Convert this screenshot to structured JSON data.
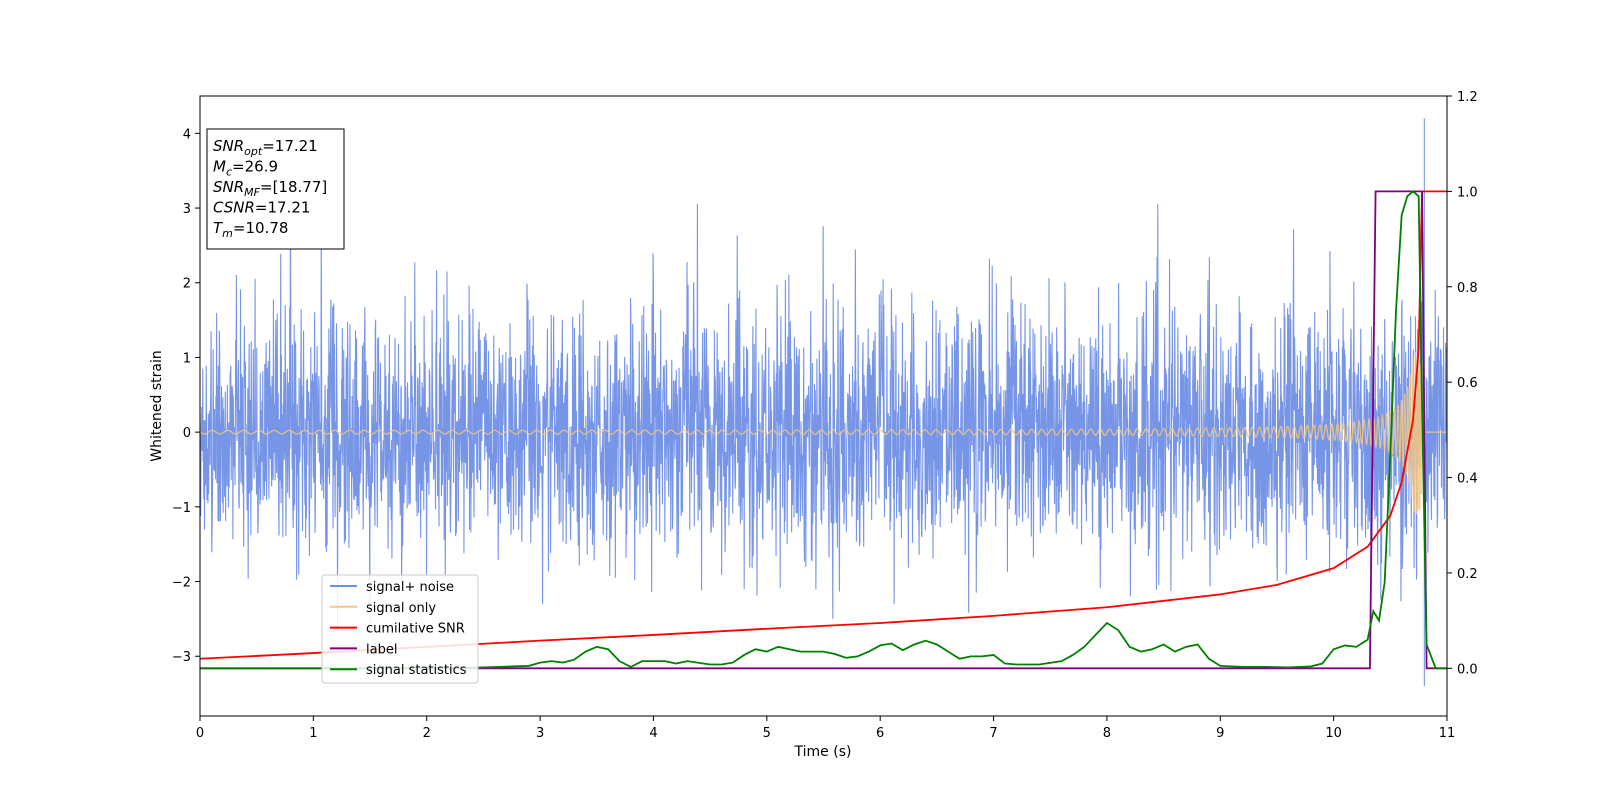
{
  "chart_data": {
    "type": "line",
    "xlabel": "Time (s)",
    "ylabel": "Whitened strain",
    "xlim": [
      0,
      11
    ],
    "ylim": [
      -3.8,
      4.5
    ],
    "y2lim": [
      -0.1,
      1.2
    ],
    "x_ticks": [
      "0",
      "1",
      "2",
      "3",
      "4",
      "5",
      "6",
      "7",
      "8",
      "9",
      "10",
      "11"
    ],
    "y_ticks": [
      "−3",
      "−2",
      "−1",
      "0",
      "1",
      "2",
      "3",
      "4"
    ],
    "y2_ticks": [
      "0.0",
      "0.2",
      "0.4",
      "0.6",
      "0.8",
      "1.0",
      "1.2"
    ],
    "grid": false,
    "legend_position": "lower-left",
    "info_box": [
      {
        "main": "SNR",
        "sub": "opt",
        "rest": "=17.21"
      },
      {
        "main": "M",
        "sub": "c",
        "rest": "=26.9"
      },
      {
        "main": "SNR",
        "sub": "MF",
        "rest": "=[18.77]"
      },
      {
        "main": "CSNR",
        "sub": "",
        "rest": "=17.21"
      },
      {
        "main": "T",
        "sub": "m",
        "rest": "=10.78"
      }
    ],
    "series": [
      {
        "name": "signal+ noise",
        "color": "#6f8fe5",
        "axis": "left",
        "description_values": {
          "noise_std": 0.7,
          "max_spike": [
            10.8,
            4.2
          ],
          "min_spike": [
            10.8,
            -3.4
          ]
        }
      },
      {
        "name": "signal only",
        "color": "#f5c77e",
        "axis": "left",
        "description_values": {
          "amplitude_at_end": 1.1,
          "merger_time": 10.78
        }
      },
      {
        "name": "cumilative SNR",
        "color": "#ff0000",
        "axis": "right",
        "x": [
          0,
          1,
          2,
          3,
          4,
          5,
          6,
          7,
          8,
          9,
          9.5,
          10,
          10.3,
          10.5,
          10.6,
          10.7,
          10.75,
          10.78,
          11
        ],
        "y": [
          0.02,
          0.032,
          0.045,
          0.058,
          0.07,
          0.083,
          0.095,
          0.11,
          0.128,
          0.155,
          0.175,
          0.21,
          0.255,
          0.32,
          0.39,
          0.52,
          0.67,
          1.0,
          1.0
        ]
      },
      {
        "name": "label",
        "color": "#800080",
        "axis": "right",
        "x": [
          0,
          10.32,
          10.37,
          10.78,
          10.82,
          11
        ],
        "y": [
          0,
          0,
          1,
          1,
          0,
          0
        ]
      },
      {
        "name": "signal statistics",
        "color": "#008000",
        "axis": "right",
        "x": [
          0,
          1.5,
          2.0,
          2.5,
          2.9,
          3.0,
          3.1,
          3.2,
          3.3,
          3.4,
          3.5,
          3.6,
          3.7,
          3.8,
          3.9,
          4.0,
          4.1,
          4.2,
          4.3,
          4.5,
          4.6,
          4.7,
          4.8,
          4.9,
          5.0,
          5.1,
          5.2,
          5.3,
          5.5,
          5.6,
          5.7,
          5.8,
          5.9,
          6.0,
          6.1,
          6.2,
          6.3,
          6.4,
          6.5,
          6.6,
          6.7,
          6.8,
          6.9,
          7.0,
          7.1,
          7.2,
          7.4,
          7.6,
          7.7,
          7.8,
          7.9,
          8.0,
          8.1,
          8.2,
          8.3,
          8.4,
          8.5,
          8.6,
          8.7,
          8.8,
          8.9,
          9.0,
          9.2,
          9.4,
          9.6,
          9.8,
          9.9,
          10.0,
          10.1,
          10.2,
          10.3,
          10.35,
          10.4,
          10.45,
          10.5,
          10.55,
          10.6,
          10.65,
          10.7,
          10.75,
          10.78,
          10.82,
          10.9,
          11
        ],
        "y": [
          0.0,
          0.0,
          0.0,
          0.002,
          0.005,
          0.012,
          0.015,
          0.012,
          0.018,
          0.035,
          0.045,
          0.04,
          0.015,
          0.003,
          0.015,
          0.015,
          0.015,
          0.01,
          0.015,
          0.008,
          0.008,
          0.012,
          0.028,
          0.04,
          0.035,
          0.045,
          0.04,
          0.035,
          0.035,
          0.03,
          0.022,
          0.025,
          0.035,
          0.048,
          0.052,
          0.038,
          0.05,
          0.058,
          0.05,
          0.035,
          0.02,
          0.025,
          0.025,
          0.028,
          0.01,
          0.008,
          0.008,
          0.015,
          0.028,
          0.045,
          0.07,
          0.095,
          0.08,
          0.045,
          0.035,
          0.04,
          0.05,
          0.035,
          0.045,
          0.05,
          0.02,
          0.005,
          0.003,
          0.003,
          0.002,
          0.004,
          0.01,
          0.04,
          0.048,
          0.045,
          0.06,
          0.12,
          0.1,
          0.18,
          0.45,
          0.75,
          0.95,
          0.99,
          1.0,
          0.99,
          0.55,
          0.05,
          0.0,
          0.0
        ]
      }
    ]
  }
}
